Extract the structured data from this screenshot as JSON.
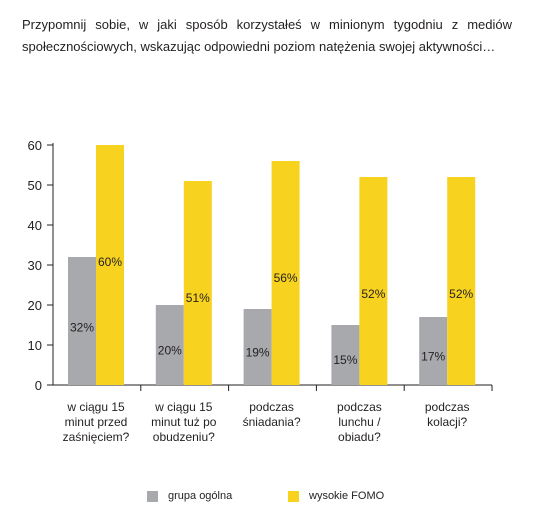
{
  "title": "Przypomnij sobie, w jaki sposób korzystałeś w minionym tygodniu z mediów społecznościowych, wskazując odpowiedni poziom natężenia swojej aktywności…",
  "colors": {
    "group_general": "#a7a9ac",
    "high_fomo": "#f7d21f",
    "axis": "#231f20"
  },
  "chart_data": {
    "type": "bar",
    "categories": [
      [
        "w ciągu 15",
        "minut przed",
        "zaśnięciem?"
      ],
      [
        "w ciągu 15",
        "minut tuż po",
        "obudzeniu?"
      ],
      [
        "podczas",
        "śniadania?"
      ],
      [
        "podczas",
        "lunchu /",
        "obiadu?"
      ],
      [
        "podczas",
        "kolacji?"
      ]
    ],
    "series": [
      {
        "name": "grupa ogólna",
        "values": [
          32,
          20,
          19,
          15,
          17
        ],
        "labels": [
          "32%",
          "20%",
          "19%",
          "15%",
          "17%"
        ]
      },
      {
        "name": "wysokie FOMO",
        "values": [
          60,
          51,
          56,
          52,
          52
        ],
        "labels": [
          "60%",
          "51%",
          "56%",
          "52%",
          "52%"
        ]
      }
    ],
    "yticks": [
      "0",
      "10",
      "20",
      "30",
      "40",
      "50",
      "60"
    ],
    "ylim": [
      0,
      60
    ],
    "grid": false,
    "legend": "bottom"
  }
}
